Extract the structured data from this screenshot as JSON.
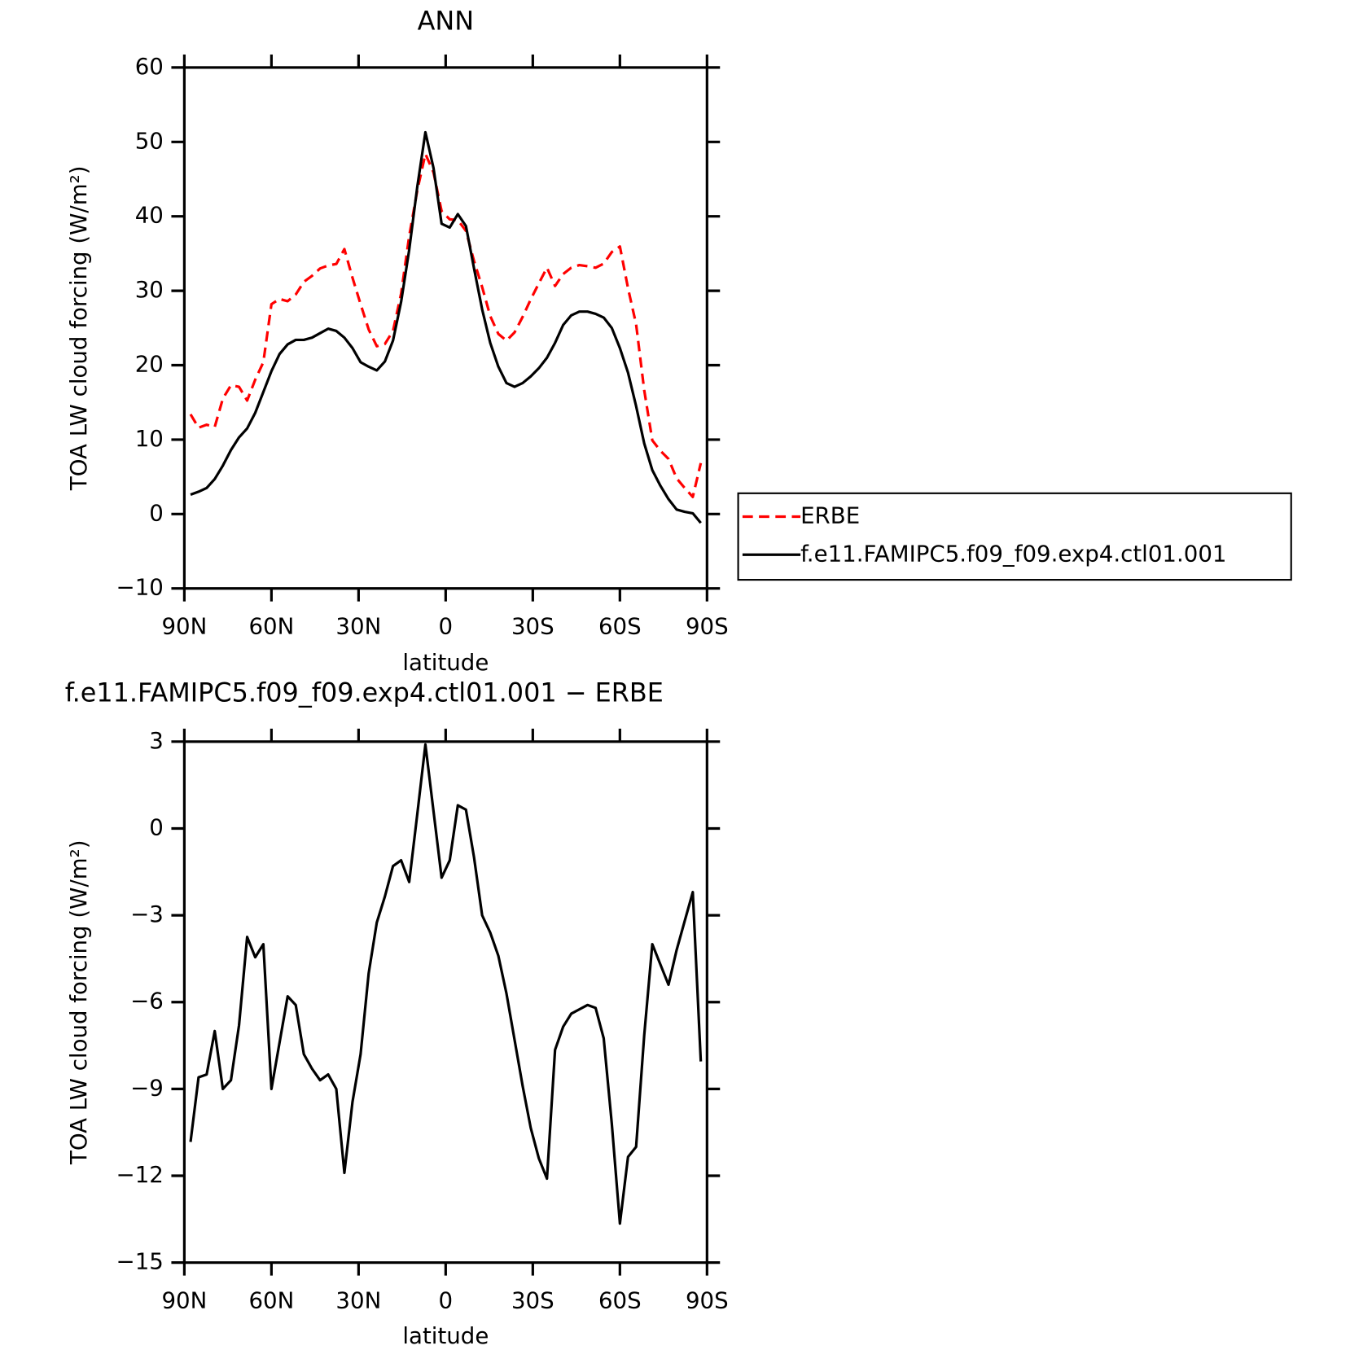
{
  "chart_data": [
    {
      "type": "line",
      "title": "ANN",
      "x_label": "latitude",
      "y_label": "TOA LW cloud forcing (W/m²)",
      "x": [
        87.86,
        85.1,
        82.31,
        79.53,
        76.74,
        73.95,
        71.16,
        68.37,
        65.58,
        62.79,
        60.0,
        57.21,
        54.42,
        51.63,
        48.84,
        46.04,
        43.25,
        40.46,
        37.67,
        34.88,
        32.09,
        29.3,
        26.51,
        23.72,
        20.93,
        18.14,
        15.35,
        12.56,
        9.77,
        6.98,
        4.19,
        1.4,
        -1.4,
        -4.19,
        -6.98,
        -9.77,
        -12.56,
        -15.35,
        -18.14,
        -20.93,
        -23.72,
        -26.51,
        -29.3,
        -32.09,
        -34.88,
        -37.67,
        -40.46,
        -43.25,
        -46.04,
        -48.84,
        -51.63,
        -54.42,
        -57.21,
        -60.0,
        -62.79,
        -65.58,
        -68.37,
        -71.16,
        -73.95,
        -76.74,
        -79.53,
        -82.31,
        -85.1,
        -87.86
      ],
      "series": [
        {
          "name": "ERBE",
          "color": "#ff0000",
          "line_style": "dashed",
          "values": [
            13.4,
            11.6,
            12.0,
            11.7,
            15.5,
            17.3,
            17.1,
            15.25,
            18.05,
            20.4,
            28.2,
            28.9,
            28.6,
            29.5,
            31.2,
            32.0,
            33.0,
            33.4,
            33.6,
            35.6,
            31.75,
            28.2,
            24.8,
            22.55,
            22.85,
            24.6,
            29.6,
            37.35,
            43.5,
            48.4,
            45.9,
            40.7,
            39.6,
            39.5,
            38.05,
            34.0,
            30.5,
            26.6,
            24.2,
            23.3,
            24.4,
            26.5,
            28.85,
            31.0,
            33.1,
            30.65,
            32.25,
            33.1,
            33.45,
            33.3,
            33.1,
            33.65,
            35.2,
            35.95,
            30.35,
            25.5,
            16.65,
            9.9,
            8.5,
            7.4,
            4.8,
            3.5,
            2.3,
            6.85
          ]
        },
        {
          "name": "f.e11.FAMIPC5.f09_f09.exp4.ctl01.001",
          "color": "#000000",
          "line_style": "solid",
          "values": [
            2.6,
            3.0,
            3.5,
            4.7,
            6.5,
            8.6,
            10.3,
            11.5,
            13.6,
            16.4,
            19.2,
            21.5,
            22.8,
            23.4,
            23.4,
            23.7,
            24.3,
            24.9,
            24.6,
            23.7,
            22.3,
            20.4,
            19.8,
            19.3,
            20.5,
            23.3,
            28.5,
            35.5,
            44.0,
            51.3,
            46.5,
            39.0,
            38.5,
            40.3,
            38.7,
            33.0,
            27.5,
            23.0,
            19.8,
            17.6,
            17.1,
            17.6,
            18.5,
            19.6,
            21.0,
            23.0,
            25.4,
            26.7,
            27.2,
            27.2,
            26.9,
            26.4,
            25.0,
            22.3,
            19.0,
            14.5,
            9.5,
            5.9,
            3.8,
            2.0,
            0.6,
            0.3,
            0.1,
            -1.2
          ]
        }
      ],
      "xlim": [
        90,
        -90
      ],
      "xticks": [
        {
          "value": 90,
          "label": "90N"
        },
        {
          "value": 60,
          "label": "60N"
        },
        {
          "value": 30,
          "label": "30N"
        },
        0,
        {
          "value": -30,
          "label": "30S"
        },
        {
          "value": -60,
          "label": "60S"
        },
        {
          "value": -90,
          "label": "90S"
        }
      ],
      "ylim": [
        -10,
        60
      ],
      "yticks": [
        {
          "value": -10,
          "label": "−10"
        },
        0,
        10,
        20,
        30,
        40,
        50,
        60
      ],
      "legend": "right"
    },
    {
      "type": "line",
      "title": "f.e11.FAMIPC5.f09_f09.exp4.ctl01.001 − ERBE",
      "x_label": "latitude",
      "y_label": "TOA LW cloud forcing (W/m²)",
      "x": [
        87.86,
        85.1,
        82.31,
        79.53,
        76.74,
        73.95,
        71.16,
        68.37,
        65.58,
        62.79,
        60.0,
        57.21,
        54.42,
        51.63,
        48.84,
        46.04,
        43.25,
        40.46,
        37.67,
        34.88,
        32.09,
        29.3,
        26.51,
        23.72,
        20.93,
        18.14,
        15.35,
        12.56,
        9.77,
        6.98,
        4.19,
        1.4,
        -1.4,
        -4.19,
        -6.98,
        -9.77,
        -12.56,
        -15.35,
        -18.14,
        -20.93,
        -23.72,
        -26.51,
        -29.3,
        -32.09,
        -34.88,
        -37.67,
        -40.46,
        -43.25,
        -46.04,
        -48.84,
        -51.63,
        -54.42,
        -57.21,
        -60.0,
        -62.79,
        -65.58,
        -68.37,
        -71.16,
        -73.95,
        -76.74,
        -79.53,
        -82.31,
        -85.1,
        -87.86
      ],
      "color": "#000000",
      "values": [
        -10.83,
        -8.6,
        -8.5,
        -7.0,
        -9.0,
        -8.7,
        -6.8,
        -3.75,
        -4.45,
        -4.0,
        -9.0,
        -7.4,
        -5.8,
        -6.1,
        -7.8,
        -8.3,
        -8.7,
        -8.5,
        -9.0,
        -11.9,
        -9.45,
        -7.8,
        -5.0,
        -3.25,
        -2.35,
        -1.3,
        -1.1,
        -1.85,
        0.5,
        2.9,
        0.6,
        -1.7,
        -1.1,
        0.8,
        0.65,
        -1.0,
        -3.0,
        -3.6,
        -4.4,
        -5.7,
        -7.3,
        -8.9,
        -10.35,
        -11.4,
        -12.1,
        -7.65,
        -6.85,
        -6.4,
        -6.25,
        -6.1,
        -6.2,
        -7.25,
        -10.2,
        -13.65,
        -11.35,
        -11.0,
        -7.15,
        -4.0,
        -4.7,
        -5.4,
        -4.2,
        -3.2,
        -2.2,
        -8.05
      ],
      "xlim": [
        90,
        -90
      ],
      "xticks": [
        {
          "value": 90,
          "label": "90N"
        },
        {
          "value": 60,
          "label": "60N"
        },
        {
          "value": 30,
          "label": "30N"
        },
        0,
        {
          "value": -30,
          "label": "30S"
        },
        {
          "value": -60,
          "label": "60S"
        },
        {
          "value": -90,
          "label": "90S"
        }
      ],
      "ylim": [
        -15,
        3
      ],
      "yticks": [
        {
          "value": -15,
          "label": "−15"
        },
        {
          "value": -12,
          "label": "−12"
        },
        {
          "value": -9,
          "label": "−9"
        },
        {
          "value": -6,
          "label": "−6"
        },
        {
          "value": -3,
          "label": "−3"
        },
        0,
        3
      ]
    }
  ]
}
